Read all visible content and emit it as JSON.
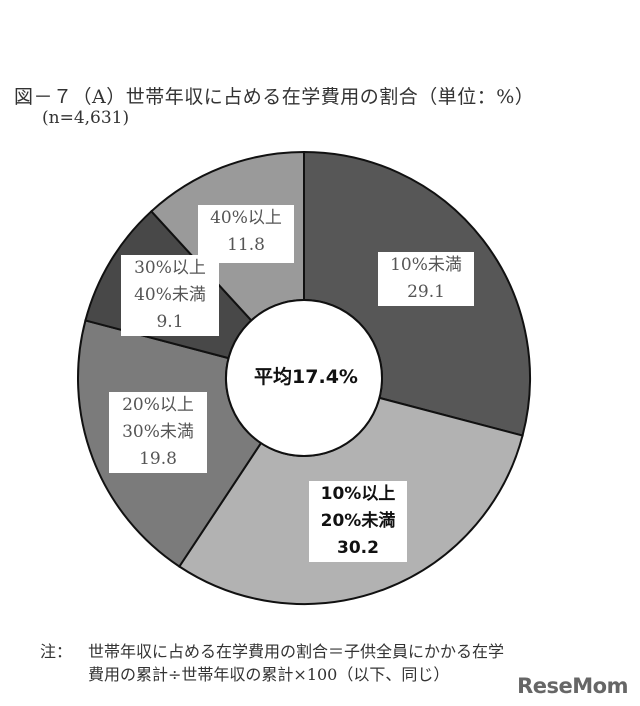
{
  "header": {
    "title": "図－７（A）世帯年収に占める在学費用の割合（単位：%）",
    "sample_size": "(n=4,631)"
  },
  "center_label": "平均17.4%",
  "labels": [
    {
      "line1": "10%未満",
      "line2": "",
      "value": "29.1"
    },
    {
      "line1": "10%以上",
      "line2": "20%未満",
      "value": "30.2"
    },
    {
      "line1": "20%以上",
      "line2": "30%未満",
      "value": "19.8"
    },
    {
      "line1": "30%以上",
      "line2": "40%未満",
      "value": "9.1"
    },
    {
      "line1": "40%以上",
      "line2": "",
      "value": "11.8"
    }
  ],
  "note": {
    "label": "注：",
    "line1": "世帯年収に占める在学費用の割合＝子供全員にかかる在学",
    "line2": "費用の累計÷世帯年収の累計×100（以下、同じ）"
  },
  "watermark": "ReseMom",
  "colors": {
    "seg1": "#575757",
    "seg2": "#b2b2b2",
    "seg3": "#7b7b7b",
    "seg4": "#484848",
    "seg5": "#9a9a9a",
    "stroke": "#111111"
  },
  "chart_data": {
    "type": "pie",
    "subtype": "donut",
    "title": "図－７（A）世帯年収に占める在学費用の割合（単位：%）",
    "subtitle": "(n=4,631)",
    "categories": [
      "10%未満",
      "10%以上20%未満",
      "20%以上30%未満",
      "30%以上40%未満",
      "40%以上"
    ],
    "values": [
      29.1,
      30.2,
      19.8,
      9.1,
      11.8
    ],
    "unit": "%",
    "center_annotation": "平均17.4%",
    "start_angle": "12 o'clock",
    "direction": "clockwise",
    "legend": "none (labels placed on segments)",
    "note": "世帯年収に占める在学費用の割合＝子供全員にかかる在学費用の累計÷世帯年収の累計×100（以下、同じ）"
  }
}
